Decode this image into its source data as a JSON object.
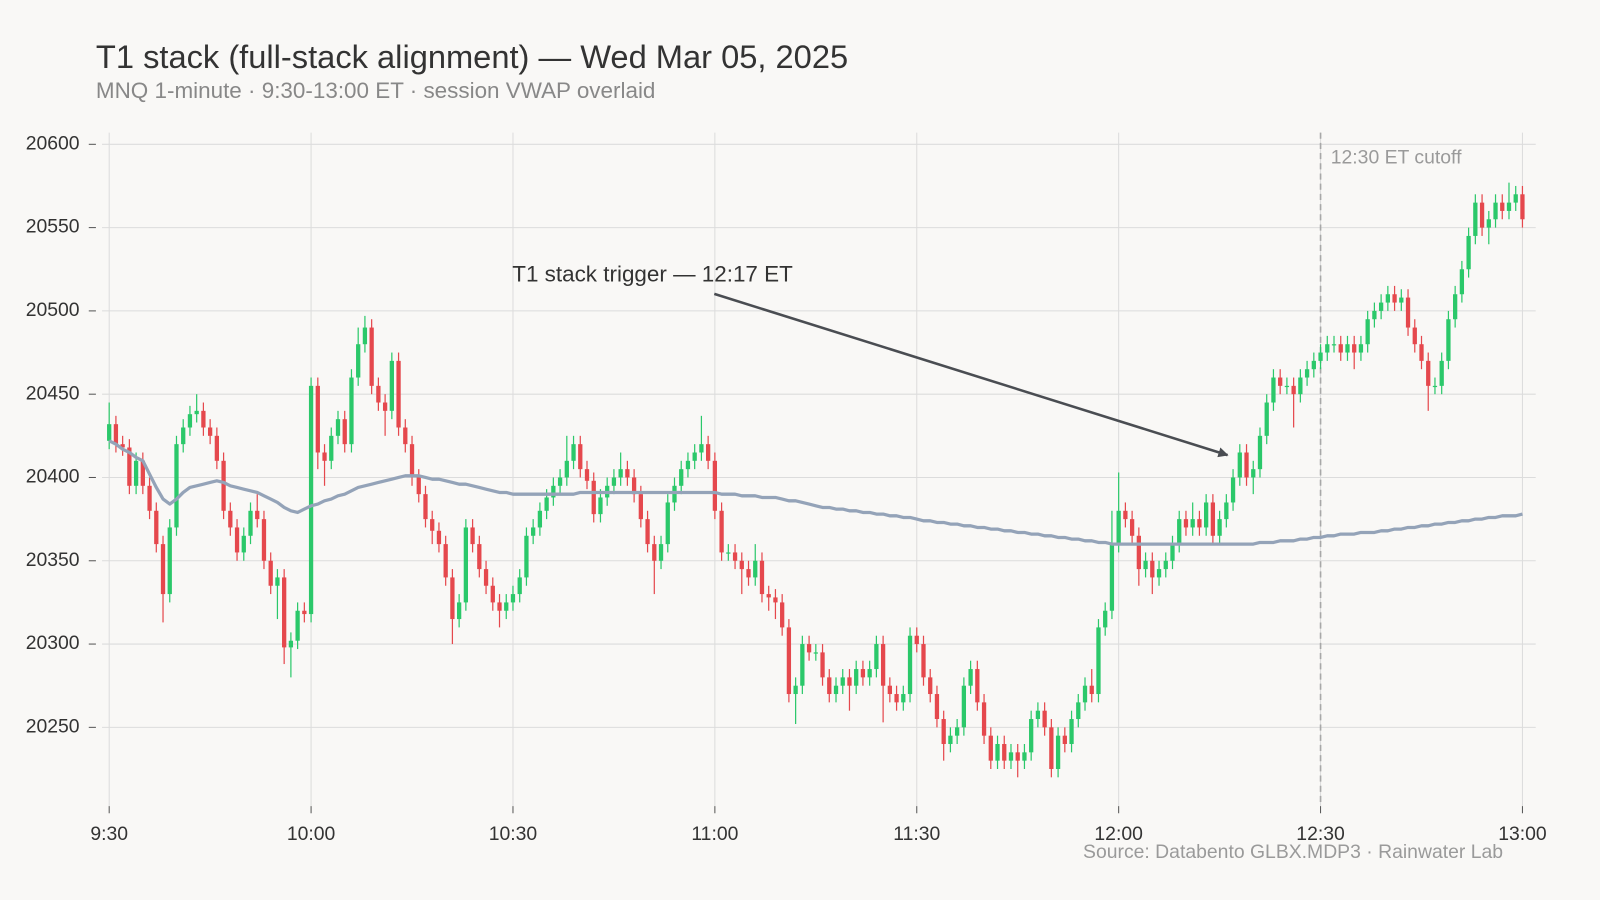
{
  "chart_data": {
    "type": "candlestick",
    "title": "T1 stack (full-stack alignment) — Wed Mar 05, 2025",
    "subtitle": "MNQ 1-minute  ·  9:30-13:00 ET  ·  session VWAP overlaid",
    "source": "Source: Databento GLBX.MDP3  ·  Rainwater Lab",
    "annotations": [
      "T1 stack trigger — 12:17 ET",
      "12:30 ET cutoff"
    ],
    "up_color": "#2bc86a",
    "down_color": "#e5484d",
    "grid": true,
    "ylim": [
      20207,
      20607
    ],
    "yticks": [
      20250,
      20300,
      20350,
      20400,
      20450,
      20500,
      20550,
      20600
    ],
    "categories": [
      "9:30",
      null,
      null,
      null,
      null,
      null,
      null,
      null,
      null,
      null,
      null,
      null,
      null,
      null,
      null,
      null,
      null,
      null,
      null,
      null,
      null,
      null,
      null,
      null,
      null,
      null,
      null,
      null,
      null,
      null,
      "10:00",
      null,
      null,
      null,
      null,
      null,
      null,
      null,
      null,
      null,
      null,
      null,
      null,
      null,
      null,
      null,
      null,
      null,
      null,
      null,
      null,
      null,
      null,
      null,
      null,
      null,
      null,
      null,
      null,
      null,
      "10:30",
      null,
      null,
      null,
      null,
      null,
      null,
      null,
      null,
      null,
      null,
      null,
      null,
      null,
      null,
      null,
      null,
      null,
      null,
      null,
      null,
      null,
      null,
      null,
      null,
      null,
      null,
      null,
      null,
      null,
      "11:00",
      null,
      null,
      null,
      null,
      null,
      null,
      null,
      null,
      null,
      null,
      null,
      null,
      null,
      null,
      null,
      null,
      null,
      null,
      null,
      null,
      null,
      null,
      null,
      null,
      null,
      null,
      null,
      null,
      null,
      "11:30",
      null,
      null,
      null,
      null,
      null,
      null,
      null,
      null,
      null,
      null,
      null,
      null,
      null,
      null,
      null,
      null,
      null,
      null,
      null,
      null,
      null,
      null,
      null,
      null,
      null,
      null,
      null,
      null,
      null,
      "12:00",
      null,
      null,
      null,
      null,
      null,
      null,
      null,
      null,
      null,
      null,
      null,
      null,
      null,
      null,
      null,
      null,
      null,
      null,
      null,
      null,
      null,
      null,
      null,
      null,
      null,
      null,
      null,
      null,
      null,
      "12:30",
      null,
      null,
      null,
      null,
      null,
      null,
      null,
      null,
      null,
      null,
      null,
      null,
      null,
      null,
      null,
      null,
      null,
      null,
      null,
      null,
      null,
      null,
      null,
      null,
      null,
      null,
      null,
      null,
      null,
      "13:00"
    ],
    "open": [
      20422,
      20432,
      20420,
      20418,
      20395,
      20410,
      20395,
      20380,
      20360,
      20330,
      20370,
      20420,
      20430,
      20438,
      20440,
      20430,
      20425,
      20410,
      20380,
      20370,
      20355,
      20365,
      20380,
      20375,
      20350,
      20335,
      20340,
      20298,
      20302,
      20320,
      20318,
      20455,
      20415,
      20410,
      20425,
      20435,
      20420,
      20460,
      20480,
      20490,
      20455,
      20445,
      20440,
      20470,
      20430,
      20420,
      20400,
      20390,
      20375,
      20368,
      20360,
      20340,
      20315,
      20325,
      20370,
      20360,
      20345,
      20335,
      20325,
      20320,
      20325,
      20330,
      20340,
      20365,
      20370,
      20380,
      20388,
      20395,
      20400,
      20410,
      20420,
      20405,
      20398,
      20378,
      20388,
      20395,
      20400,
      20405,
      20400,
      20390,
      20375,
      20360,
      20350,
      20360,
      20385,
      20395,
      20405,
      20410,
      20415,
      20420,
      20410,
      20380,
      20355,
      20355,
      20350,
      20345,
      20340,
      20350,
      20330,
      20328,
      20325,
      20310,
      20270,
      20275,
      20300,
      20295,
      20295,
      20280,
      20270,
      20275,
      20280,
      20275,
      20285,
      20280,
      20285,
      20300,
      20275,
      20270,
      20265,
      20270,
      20305,
      20300,
      20280,
      20270,
      20255,
      20240,
      20245,
      20250,
      20275,
      20285,
      20265,
      20245,
      20230,
      20240,
      20230,
      20235,
      20230,
      20235,
      20255,
      20260,
      20250,
      20225,
      20245,
      20240,
      20255,
      20265,
      20275,
      20270,
      20310,
      20320,
      20360,
      20380,
      20375,
      20365,
      20345,
      20350,
      20340,
      20345,
      20350,
      20360,
      20375,
      20370,
      20375,
      20370,
      20385,
      20365,
      20375,
      20385,
      20400,
      20415,
      20400,
      20405,
      20425,
      20445,
      20460,
      20455,
      20455,
      20450,
      20460,
      20465,
      20470,
      20475,
      20480,
      20480,
      20475,
      20480,
      20475,
      20480,
      20495,
      20500,
      20505,
      20510,
      20505,
      20508,
      20490,
      20480,
      20470,
      20455,
      20455,
      20470,
      20495,
      20510,
      20525,
      20545,
      20565,
      20550,
      20555,
      20565,
      20560,
      20565,
      20570
    ],
    "high": [
      20445,
      20437,
      20425,
      20423,
      20415,
      20415,
      20400,
      20385,
      20365,
      20375,
      20425,
      20435,
      20443,
      20450,
      20445,
      20435,
      20430,
      20415,
      20385,
      20375,
      20370,
      20385,
      20390,
      20380,
      20355,
      20345,
      20345,
      20307,
      20325,
      20325,
      20460,
      20460,
      20420,
      20430,
      20440,
      20440,
      20465,
      20490,
      20497,
      20495,
      20460,
      20450,
      20475,
      20475,
      20435,
      20425,
      20405,
      20395,
      20380,
      20373,
      20365,
      20345,
      20330,
      20375,
      20375,
      20365,
      20350,
      20340,
      20330,
      20330,
      20335,
      20345,
      20370,
      20375,
      20385,
      20393,
      20400,
      20405,
      20425,
      20425,
      20425,
      20410,
      20403,
      20393,
      20400,
      20405,
      20415,
      20410,
      20405,
      20395,
      20380,
      20365,
      20365,
      20390,
      20400,
      20410,
      20415,
      20420,
      20437,
      20425,
      20415,
      20385,
      20360,
      20360,
      20355,
      20350,
      20360,
      20355,
      20335,
      20333,
      20330,
      20315,
      20280,
      20305,
      20305,
      20300,
      20300,
      20285,
      20280,
      20285,
      20285,
      20290,
      20290,
      20290,
      20305,
      20305,
      20280,
      20275,
      20275,
      20310,
      20310,
      20305,
      20285,
      20275,
      20260,
      20250,
      20255,
      20280,
      20290,
      20290,
      20270,
      20250,
      20245,
      20245,
      20240,
      20240,
      20240,
      20260,
      20265,
      20265,
      20255,
      20250,
      20250,
      20260,
      20270,
      20280,
      20285,
      20315,
      20325,
      20380,
      20403,
      20385,
      20380,
      20370,
      20355,
      20355,
      20350,
      20355,
      20365,
      20380,
      20380,
      20385,
      20380,
      20390,
      20390,
      20380,
      20390,
      20405,
      20420,
      20420,
      20410,
      20430,
      20450,
      20465,
      20465,
      20460,
      20460,
      20465,
      20470,
      20475,
      20480,
      20485,
      20485,
      20485,
      20485,
      20485,
      20485,
      20500,
      20505,
      20510,
      20515,
      20515,
      20513,
      20513,
      20495,
      20485,
      20475,
      20460,
      20475,
      20500,
      20515,
      20530,
      20550,
      20570,
      20570,
      20560,
      20570,
      20570,
      20577,
      20575,
      20575
    ],
    "low": [
      20417,
      20415,
      20413,
      20390,
      20390,
      20390,
      20375,
      20355,
      20313,
      20325,
      20365,
      20415,
      20425,
      20433,
      20425,
      20420,
      20405,
      20375,
      20365,
      20350,
      20350,
      20360,
      20370,
      20345,
      20330,
      20315,
      20288,
      20280,
      20297,
      20313,
      20313,
      20405,
      20395,
      20405,
      20420,
      20415,
      20415,
      20455,
      20475,
      20450,
      20440,
      20425,
      20435,
      20425,
      20415,
      20395,
      20385,
      20370,
      20360,
      20355,
      20335,
      20300,
      20310,
      20320,
      20355,
      20340,
      20330,
      20320,
      20310,
      20315,
      20320,
      20325,
      20335,
      20360,
      20365,
      20375,
      20383,
      20390,
      20395,
      20405,
      20400,
      20393,
      20373,
      20373,
      20383,
      20390,
      20395,
      20395,
      20385,
      20370,
      20355,
      20330,
      20345,
      20355,
      20380,
      20390,
      20400,
      20405,
      20410,
      20405,
      20375,
      20350,
      20350,
      20345,
      20330,
      20335,
      20335,
      20325,
      20320,
      20315,
      20305,
      20265,
      20252,
      20270,
      20290,
      20290,
      20275,
      20265,
      20265,
      20270,
      20260,
      20270,
      20275,
      20275,
      20280,
      20253,
      20265,
      20260,
      20260,
      20265,
      20295,
      20275,
      20265,
      20250,
      20230,
      20235,
      20240,
      20245,
      20270,
      20260,
      20240,
      20225,
      20225,
      20225,
      20225,
      20220,
      20225,
      20230,
      20250,
      20245,
      20220,
      20220,
      20235,
      20235,
      20250,
      20260,
      20265,
      20265,
      20305,
      20315,
      20355,
      20370,
      20360,
      20335,
      20340,
      20330,
      20335,
      20340,
      20345,
      20355,
      20365,
      20365,
      20365,
      20365,
      20360,
      20360,
      20370,
      20380,
      20395,
      20395,
      20390,
      20400,
      20420,
      20440,
      20450,
      20450,
      20430,
      20445,
      20455,
      20460,
      20465,
      20470,
      20475,
      20470,
      20470,
      20465,
      20470,
      20475,
      20490,
      20495,
      20500,
      20500,
      20500,
      20485,
      20475,
      20465,
      20440,
      20450,
      20450,
      20465,
      20490,
      20505,
      20520,
      20540,
      20545,
      20540,
      20550,
      20555,
      20555,
      20560,
      20550
    ],
    "close": [
      20432,
      20420,
      20418,
      20395,
      20410,
      20395,
      20380,
      20360,
      20330,
      20370,
      20420,
      20430,
      20438,
      20440,
      20430,
      20425,
      20410,
      20380,
      20370,
      20355,
      20365,
      20380,
      20375,
      20350,
      20335,
      20340,
      20298,
      20302,
      20320,
      20318,
      20455,
      20415,
      20410,
      20425,
      20435,
      20420,
      20460,
      20480,
      20490,
      20455,
      20445,
      20440,
      20470,
      20430,
      20420,
      20400,
      20390,
      20375,
      20368,
      20360,
      20340,
      20315,
      20325,
      20370,
      20360,
      20345,
      20335,
      20325,
      20320,
      20325,
      20330,
      20340,
      20365,
      20370,
      20380,
      20388,
      20395,
      20400,
      20410,
      20420,
      20405,
      20398,
      20378,
      20388,
      20395,
      20400,
      20405,
      20400,
      20390,
      20375,
      20360,
      20350,
      20360,
      20385,
      20395,
      20405,
      20410,
      20415,
      20420,
      20410,
      20380,
      20355,
      20355,
      20350,
      20345,
      20340,
      20350,
      20330,
      20328,
      20325,
      20310,
      20270,
      20275,
      20300,
      20295,
      20295,
      20280,
      20270,
      20275,
      20280,
      20275,
      20285,
      20280,
      20285,
      20300,
      20275,
      20270,
      20265,
      20270,
      20305,
      20300,
      20280,
      20270,
      20255,
      20240,
      20245,
      20250,
      20275,
      20285,
      20265,
      20245,
      20230,
      20240,
      20230,
      20235,
      20230,
      20235,
      20255,
      20260,
      20250,
      20225,
      20245,
      20240,
      20255,
      20265,
      20275,
      20270,
      20310,
      20320,
      20360,
      20380,
      20375,
      20365,
      20345,
      20350,
      20340,
      20345,
      20350,
      20360,
      20375,
      20370,
      20375,
      20370,
      20385,
      20365,
      20375,
      20385,
      20400,
      20415,
      20400,
      20405,
      20425,
      20445,
      20460,
      20455,
      20455,
      20450,
      20460,
      20465,
      20470,
      20475,
      20480,
      20480,
      20475,
      20480,
      20475,
      20480,
      20495,
      20500,
      20505,
      20510,
      20505,
      20508,
      20490,
      20480,
      20470,
      20455,
      20455,
      20470,
      20495,
      20510,
      20525,
      20545,
      20565,
      20550,
      20555,
      20565,
      20560,
      20565,
      20570,
      20555
    ],
    "overlay": {
      "type": "line",
      "color": "#94a3b8",
      "values": [
        20422,
        20420,
        20417,
        20415,
        20412,
        20410,
        20402,
        20394,
        20387,
        20384,
        20387,
        20391,
        20394,
        20395,
        20396,
        20397,
        20398,
        20397,
        20395,
        20394,
        20393,
        20392,
        20391,
        20389,
        20387,
        20385,
        20382,
        20380,
        20379,
        20381,
        20383,
        20384,
        20386,
        20387,
        20389,
        20390,
        20392,
        20394,
        20395,
        20396,
        20397,
        20398,
        20399,
        20400,
        20401,
        20401,
        20401,
        20400,
        20399,
        20399,
        20398,
        20397,
        20396,
        20396,
        20395,
        20394,
        20393,
        20392,
        20391,
        20391,
        20390,
        20390,
        20390,
        20390,
        20390,
        20390,
        20390,
        20390,
        20390,
        20390,
        20391,
        20391,
        20391,
        20391,
        20391,
        20391,
        20391,
        20391,
        20391,
        20391,
        20391,
        20391,
        20391,
        20391,
        20391,
        20391,
        20391,
        20391,
        20391,
        20391,
        20391,
        20390,
        20390,
        20390,
        20389,
        20389,
        20389,
        20388,
        20388,
        20388,
        20387,
        20386,
        20386,
        20385,
        20384,
        20383,
        20382,
        20382,
        20381,
        20381,
        20380,
        20380,
        20379,
        20379,
        20378,
        20378,
        20377,
        20377,
        20376,
        20376,
        20375,
        20374,
        20374,
        20373,
        20373,
        20372,
        20372,
        20371,
        20371,
        20370,
        20370,
        20369,
        20369,
        20368,
        20368,
        20367,
        20367,
        20366,
        20366,
        20365,
        20365,
        20364,
        20364,
        20363,
        20363,
        20362,
        20362,
        20361,
        20361,
        20360,
        20360,
        20360,
        20360,
        20360,
        20360,
        20360,
        20360,
        20360,
        20360,
        20360,
        20360,
        20360,
        20360,
        20360,
        20360,
        20360,
        20360,
        20360,
        20360,
        20360,
        20360,
        20361,
        20361,
        20361,
        20362,
        20362,
        20362,
        20363,
        20363,
        20364,
        20364,
        20365,
        20365,
        20366,
        20366,
        20366,
        20367,
        20367,
        20367,
        20368,
        20368,
        20369,
        20369,
        20370,
        20370,
        20371,
        20371,
        20372,
        20372,
        20373,
        20373,
        20374,
        20374,
        20375,
        20375,
        20376,
        20376,
        20377,
        20377,
        20377,
        20378
      ]
    }
  }
}
